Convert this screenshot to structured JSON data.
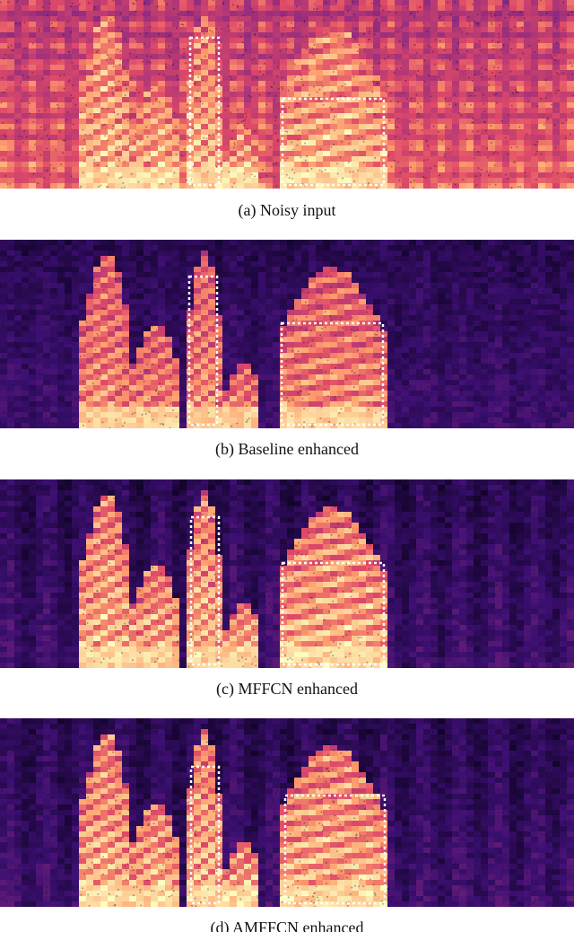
{
  "figure": {
    "panels": [
      {
        "id": "a",
        "caption": "(a) Noisy input",
        "style": "noisy",
        "highlight_boxes": 2
      },
      {
        "id": "b",
        "caption": "(b) Baseline enhanced",
        "style": "baseline",
        "highlight_boxes": 2
      },
      {
        "id": "c",
        "caption": "(c) MFFCN enhanced",
        "style": "mffcn",
        "highlight_boxes": 2
      },
      {
        "id": "d",
        "caption": "(d) AMFFCN enhanced",
        "style": "amffcn",
        "highlight_boxes": 2
      }
    ],
    "colormap": [
      "#0d0221",
      "#3b0f70",
      "#8c2981",
      "#de4968",
      "#fe9f6d",
      "#fcfdbf"
    ]
  }
}
